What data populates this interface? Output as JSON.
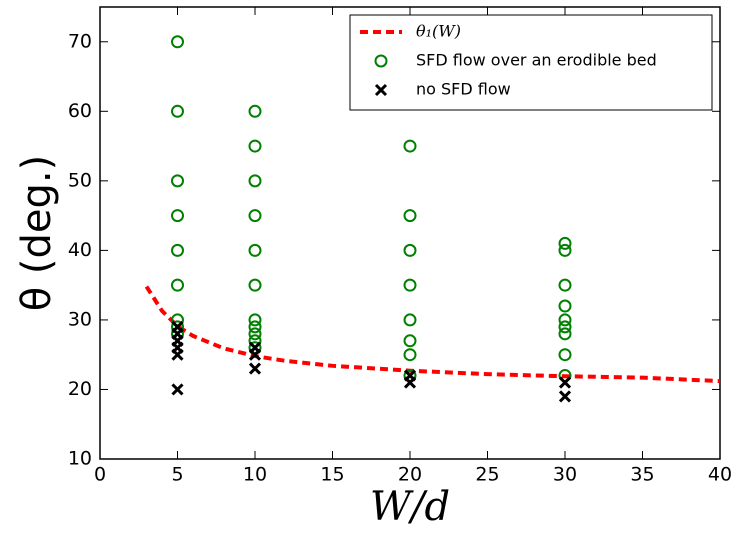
{
  "chart_data": {
    "type": "scatter",
    "xlabel": "W/d",
    "ylabel": "θ (deg.)",
    "xlim": [
      0,
      40
    ],
    "ylim": [
      10,
      75
    ],
    "xticks": [
      0,
      5,
      10,
      15,
      20,
      25,
      30,
      35,
      40
    ],
    "yticks": [
      10,
      20,
      30,
      40,
      50,
      60,
      70
    ],
    "legend": "upper right",
    "series": [
      {
        "name": "θ₁(W)",
        "color": "#ff0000",
        "line_style": "dashed",
        "x": [
          3,
          4,
          5,
          6,
          8,
          10,
          12,
          15,
          20,
          25,
          30,
          35,
          40
        ],
        "values": [
          34.8,
          31.3,
          29.1,
          27.7,
          25.9,
          24.8,
          24.1,
          23.4,
          22.7,
          22.2,
          21.9,
          21.7,
          21.2
        ]
      },
      {
        "name": "SFD flow over an erodible bed",
        "color": "#008000",
        "marker": "o",
        "x": [
          5,
          5,
          5,
          5,
          5,
          5,
          5,
          5,
          5,
          10,
          10,
          10,
          10,
          10,
          10,
          10,
          10,
          10,
          10,
          10,
          20,
          20,
          20,
          20,
          20,
          20,
          20,
          20,
          30,
          30,
          30,
          30,
          30,
          30,
          30,
          30,
          30
        ],
        "values": [
          70,
          60,
          50,
          45,
          40,
          35,
          30,
          29,
          28,
          60,
          55,
          50,
          45,
          40,
          35,
          30,
          29,
          28,
          27,
          26,
          55,
          45,
          40,
          35,
          30,
          27,
          25,
          22,
          41,
          40,
          35,
          32,
          30,
          29,
          28,
          25,
          22
        ]
      },
      {
        "name": "no SFD flow",
        "color": "#000000",
        "marker": "x",
        "x": [
          5,
          5,
          5,
          5,
          5,
          5,
          10,
          10,
          10,
          20,
          20,
          30,
          30
        ],
        "values": [
          20,
          25,
          26,
          27,
          28,
          29,
          23,
          25,
          26,
          21,
          22,
          19,
          21
        ]
      }
    ]
  }
}
